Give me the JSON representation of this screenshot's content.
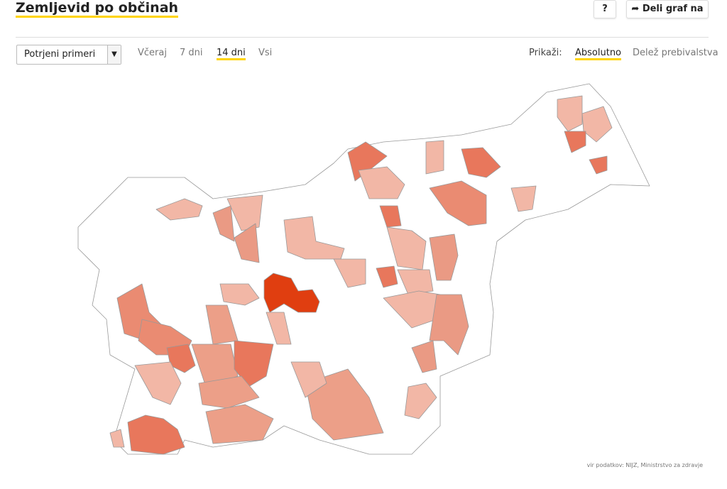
{
  "header": {
    "title": "Zemljevid po občinah",
    "help_button": "?",
    "share_button": "Deli graf na"
  },
  "controls": {
    "select": "Potrjeni primeri",
    "tabs": [
      "Včeraj",
      "7 dni",
      "14 dni",
      "Vsi"
    ],
    "show_label": "Prikaži:",
    "show_options": [
      "Absolutno",
      "Delež prebivalstva"
    ]
  },
  "footer": {
    "source": "vir podatkov: NIJZ, Ministrstvo za zdravje"
  }
}
